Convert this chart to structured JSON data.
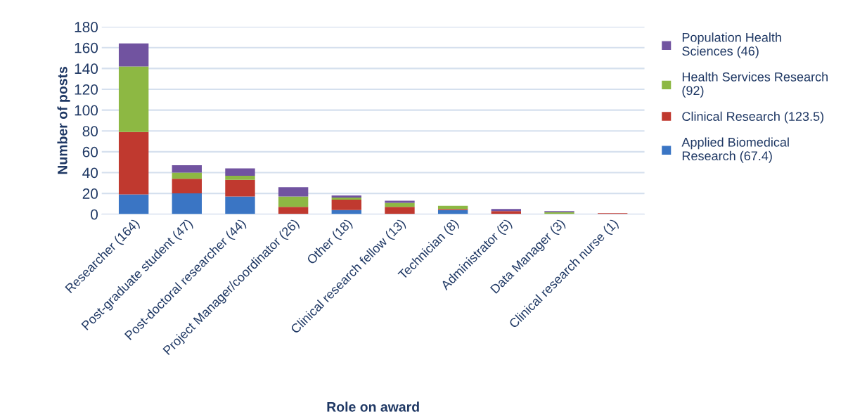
{
  "chart_data": {
    "type": "bar",
    "stacked": true,
    "xlabel": "Role on award",
    "ylabel": "Number of posts",
    "categories": [
      "Researcher (164)",
      "Post-graduate student (47)",
      "Post-doctoral researcher (44)",
      "Project Manager/coordinator (26)",
      "Other (18)",
      "Clinical research fellow (13)",
      "Technician (8)",
      "Administrator (5)",
      "Data Manager (3)",
      "Clinical research nurse (1)"
    ],
    "series": [
      {
        "name": "Applied Biomedical Research (67.4)",
        "color": "#3a75c4",
        "values": [
          19,
          20,
          17,
          0,
          4,
          0,
          4,
          0,
          0,
          0
        ]
      },
      {
        "name": "Clinical Research (123.5)",
        "color": "#c0392f",
        "values": [
          60,
          14,
          16,
          7,
          10,
          7,
          1,
          3,
          0,
          1
        ]
      },
      {
        "name": "Health Services Research (92)",
        "color": "#8db843",
        "values": [
          63,
          6,
          4,
          10,
          2,
          4,
          3,
          0,
          2,
          0
        ]
      },
      {
        "name": "Population Health Sciences (46)",
        "color": "#7153a0",
        "values": [
          22,
          7,
          7,
          9,
          2,
          2,
          0,
          2,
          1,
          0
        ]
      }
    ],
    "ylim": [
      0,
      180
    ],
    "yticks": [
      0,
      20,
      40,
      60,
      80,
      100,
      120,
      140,
      160,
      180
    ],
    "grid": "y",
    "legend": "right"
  }
}
